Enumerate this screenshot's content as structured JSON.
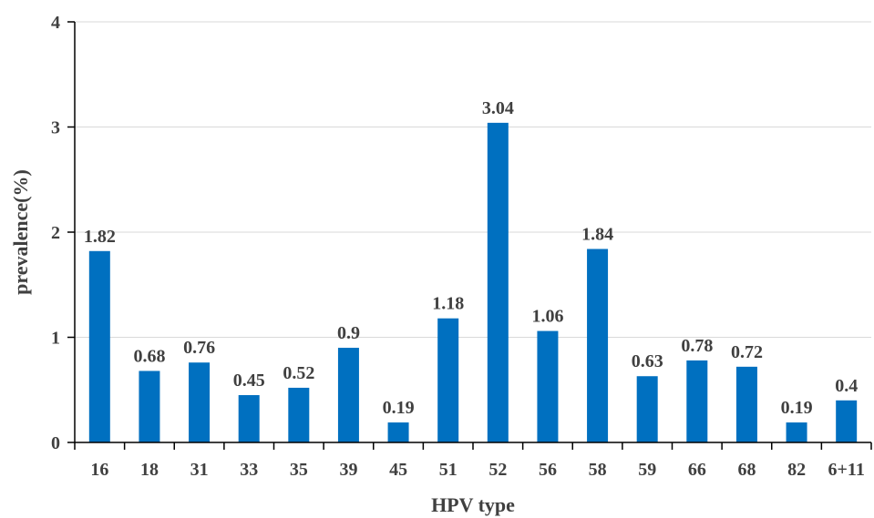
{
  "chart_data": {
    "type": "bar",
    "title": "",
    "xlabel": "HPV type",
    "ylabel": "prevalence(%)",
    "ylim": [
      0,
      4
    ],
    "yticks": [
      0,
      1,
      2,
      3,
      4
    ],
    "grid": "horizontal",
    "bar_color": "#0070C0",
    "categories": [
      "16",
      "18",
      "31",
      "33",
      "35",
      "39",
      "45",
      "51",
      "52",
      "56",
      "58",
      "59",
      "66",
      "68",
      "82",
      "6+11"
    ],
    "values": [
      1.82,
      0.68,
      0.76,
      0.45,
      0.52,
      0.9,
      0.19,
      1.18,
      3.04,
      1.06,
      1.84,
      0.63,
      0.78,
      0.72,
      0.19,
      0.4
    ]
  }
}
